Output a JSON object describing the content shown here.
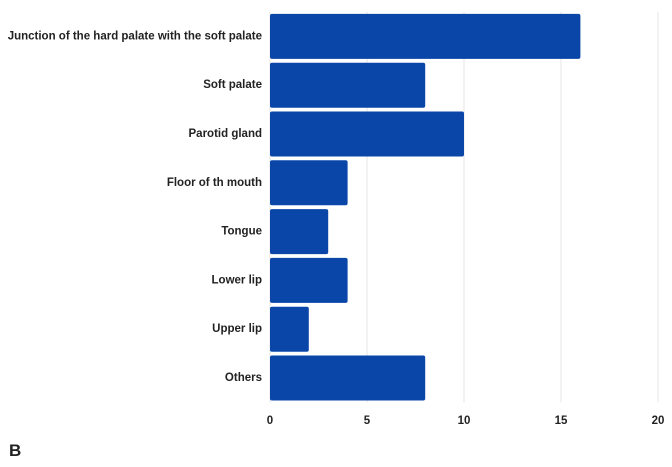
{
  "panel_label": "B",
  "colors": {
    "bar": "#0a46a8",
    "grid": "#e6e6e6",
    "text": "#222222"
  },
  "chart_data": {
    "type": "bar",
    "orientation": "horizontal",
    "title": "",
    "xlabel": "",
    "ylabel": "",
    "categories": [
      "Junction of the hard palate with the soft palate",
      "Soft palate",
      "Parotid gland",
      "Floor of th mouth",
      "Tongue",
      "Lower lip",
      "Upper lip",
      "Others"
    ],
    "values": [
      16,
      8,
      10,
      4,
      3,
      4,
      2,
      8
    ],
    "xlim": [
      0,
      20
    ],
    "xticks": [
      0,
      5,
      10,
      15,
      20
    ],
    "grid": "vertical",
    "legend": "none"
  }
}
